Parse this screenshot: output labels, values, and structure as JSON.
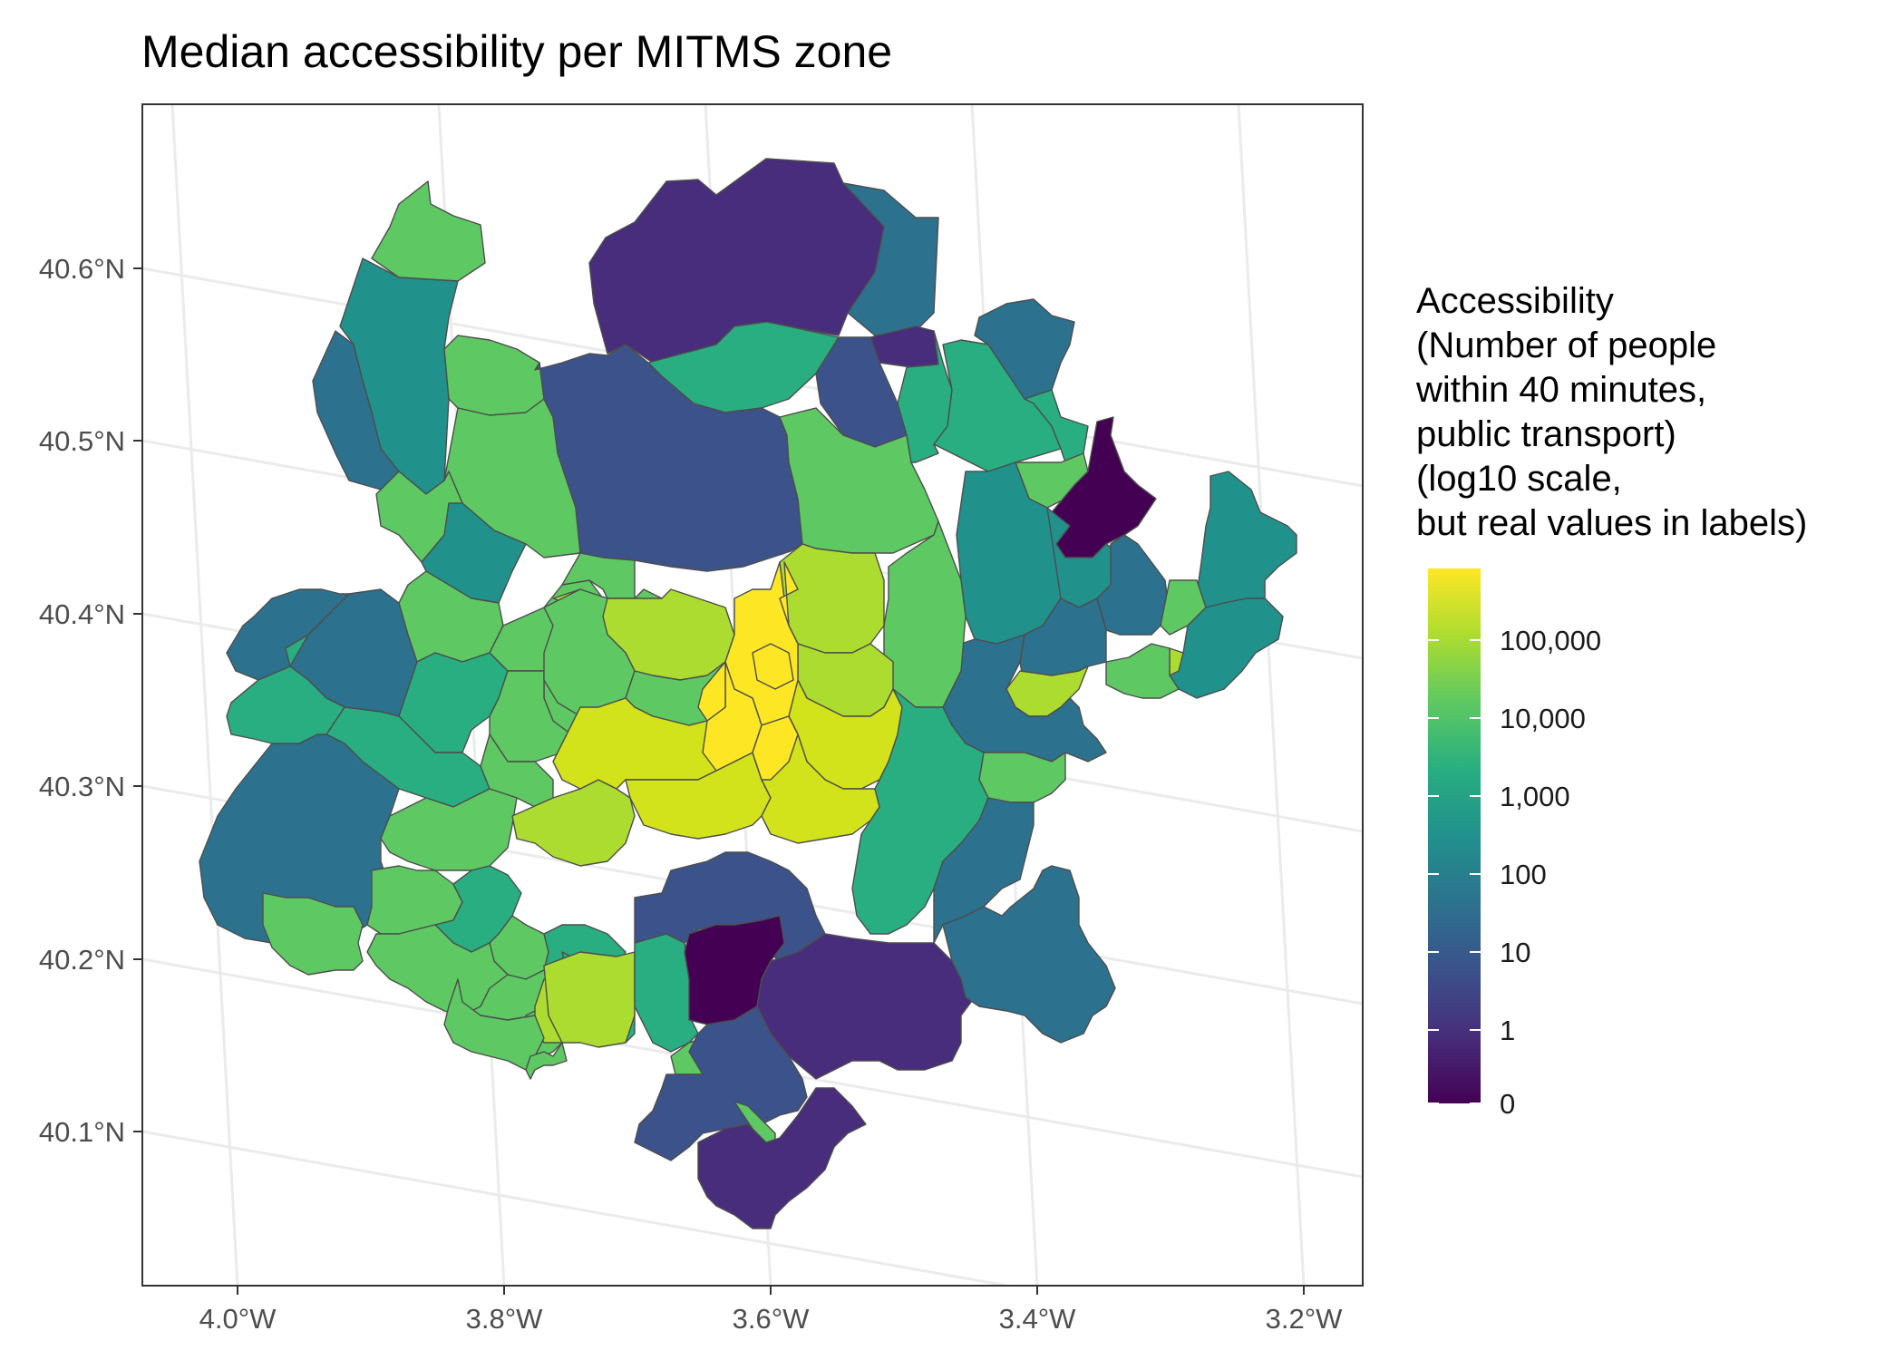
{
  "title": "Median accessibility per MITMS zone",
  "axes": {
    "y_ticks": [
      "40.6°N",
      "40.5°N",
      "40.4°N",
      "40.3°N",
      "40.2°N",
      "40.1°N"
    ],
    "x_ticks": [
      "4.0°W",
      "3.8°W",
      "3.6°W",
      "3.4°W",
      "3.2°W"
    ]
  },
  "legend": {
    "title_lines": [
      "Accessibility",
      "(Number of people",
      "within 40 minutes,",
      "public transport)",
      "(log10 scale,",
      "but real values in labels)"
    ],
    "labels": [
      "100,000",
      "10,000",
      "1,000",
      "100",
      "10",
      "1",
      "0"
    ],
    "scale": "log10",
    "colors": [
      "#440154",
      "#472d7b",
      "#3b528b",
      "#2c728e",
      "#21918c",
      "#28ae80",
      "#5ec962",
      "#addc30",
      "#fde725"
    ]
  },
  "colors": {
    "background": "#ffffff",
    "grid": "#ebebeb",
    "border": "#333333",
    "zone_stroke": "#4d4d4d"
  }
}
